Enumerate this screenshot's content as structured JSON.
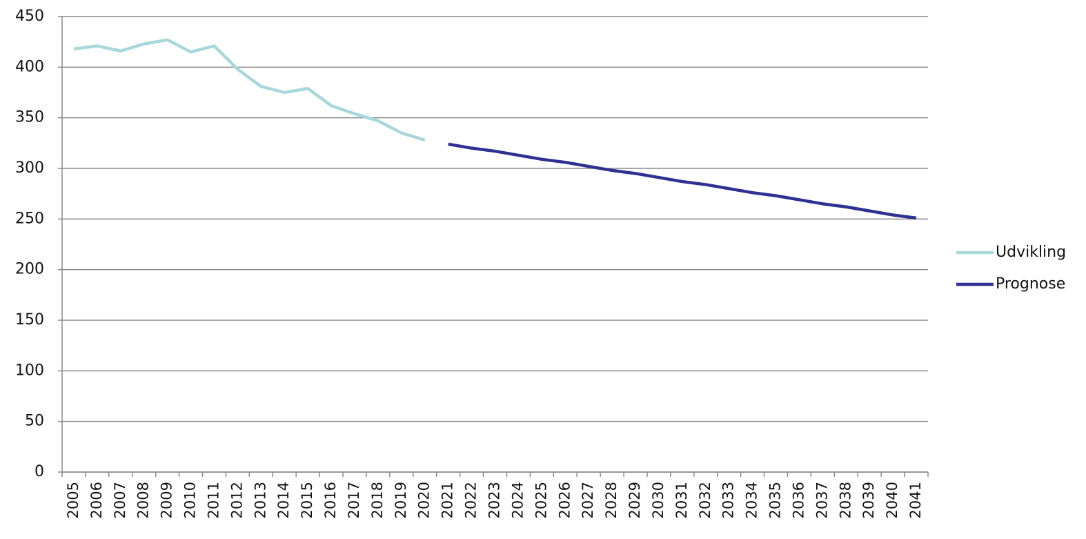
{
  "chart_data": {
    "type": "line",
    "categories": [
      "2005",
      "2006",
      "2007",
      "2008",
      "2009",
      "2010",
      "2011",
      "2012",
      "2013",
      "2014",
      "2015",
      "2016",
      "2017",
      "2018",
      "2019",
      "2020",
      "2021",
      "2022",
      "2023",
      "2024",
      "2025",
      "2026",
      "2027",
      "2028",
      "2029",
      "2030",
      "2031",
      "2032",
      "2033",
      "2034",
      "2035",
      "2036",
      "2037",
      "2038",
      "2039",
      "2040",
      "2041"
    ],
    "series": [
      {
        "name": "Udvikling",
        "color": "#a8d8dc",
        "values": [
          418,
          421,
          416,
          423,
          427,
          415,
          421,
          398,
          381,
          375,
          379,
          362,
          354,
          347,
          335,
          328,
          null,
          null,
          null,
          null,
          null,
          null,
          null,
          null,
          null,
          null,
          null,
          null,
          null,
          null,
          null,
          null,
          null,
          null,
          null,
          null,
          null
        ]
      },
      {
        "name": "Prognose",
        "color": "#2e3192",
        "values": [
          null,
          null,
          null,
          null,
          null,
          null,
          null,
          null,
          null,
          null,
          null,
          null,
          null,
          null,
          null,
          null,
          324,
          320,
          317,
          313,
          309,
          306,
          302,
          298,
          295,
          291,
          287,
          284,
          280,
          276,
          273,
          269,
          265,
          262,
          258,
          254,
          251
        ]
      }
    ],
    "ylim": [
      0,
      450
    ],
    "yticks": [
      0,
      50,
      100,
      150,
      200,
      250,
      300,
      350,
      400,
      450
    ],
    "grid": true,
    "legend": "right"
  }
}
